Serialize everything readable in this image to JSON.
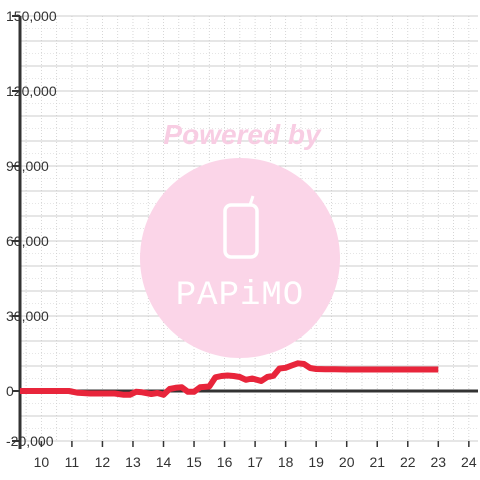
{
  "chart_data": {
    "type": "line",
    "title": "",
    "xlabel": "",
    "ylabel": "",
    "xlim": [
      9.3,
      24.3
    ],
    "ylim": [
      -20000,
      150000
    ],
    "x_ticks": [
      10,
      11,
      12,
      13,
      14,
      15,
      16,
      17,
      18,
      19,
      20,
      21,
      22,
      23,
      24
    ],
    "y_ticks": [
      -20000,
      0,
      30000,
      60000,
      90000,
      120000,
      150000
    ],
    "x_tick_labels": [
      "10",
      "11",
      "12",
      "13",
      "14",
      "15",
      "16",
      "17",
      "18",
      "19",
      "20",
      "21",
      "22",
      "23",
      "24"
    ],
    "y_tick_labels": [
      "-20,000",
      "0",
      "30,000",
      "60,000",
      "90,000",
      "120,000",
      "150,000"
    ],
    "grid": true,
    "legend": "none",
    "series": [
      {
        "color": "#e8253b",
        "x": [
          9.3,
          10,
          10.5,
          10.9,
          11.2,
          11.6,
          12,
          12.4,
          12.7,
          12.9,
          13.1,
          13.3,
          13.6,
          13.8,
          14.0,
          14.2,
          14.4,
          14.6,
          14.8,
          15.0,
          15.2,
          15.5,
          15.7,
          15.9,
          16.1,
          16.3,
          16.5,
          16.7,
          16.9,
          17.2,
          17.4,
          17.6,
          17.8,
          18.0,
          18.2,
          18.4,
          18.6,
          18.8,
          19.0,
          19.3,
          19.6,
          20,
          21,
          22,
          23
        ],
        "y": [
          0,
          0,
          0,
          0,
          -700,
          -1000,
          -1000,
          -1000,
          -1500,
          -1500,
          -300,
          -500,
          -1200,
          -800,
          -1500,
          800,
          1300,
          1500,
          -300,
          -300,
          1500,
          1800,
          5500,
          6000,
          6200,
          6000,
          5600,
          4500,
          5000,
          4000,
          5600,
          6100,
          9000,
          9300,
          10200,
          11100,
          10800,
          9200,
          8800,
          8700,
          8700,
          8600,
          8600,
          8600,
          8600
        ]
      }
    ]
  },
  "watermark": {
    "text": "Powered by",
    "brand": "PAPiMO",
    "circle_color": "#fbd5e8",
    "text_color": "#f8cde3",
    "icon": "mobile-phone-icon"
  },
  "colors": {
    "line": "#e8253b",
    "zero_axis": "#333333",
    "grid": "#cccccc"
  }
}
